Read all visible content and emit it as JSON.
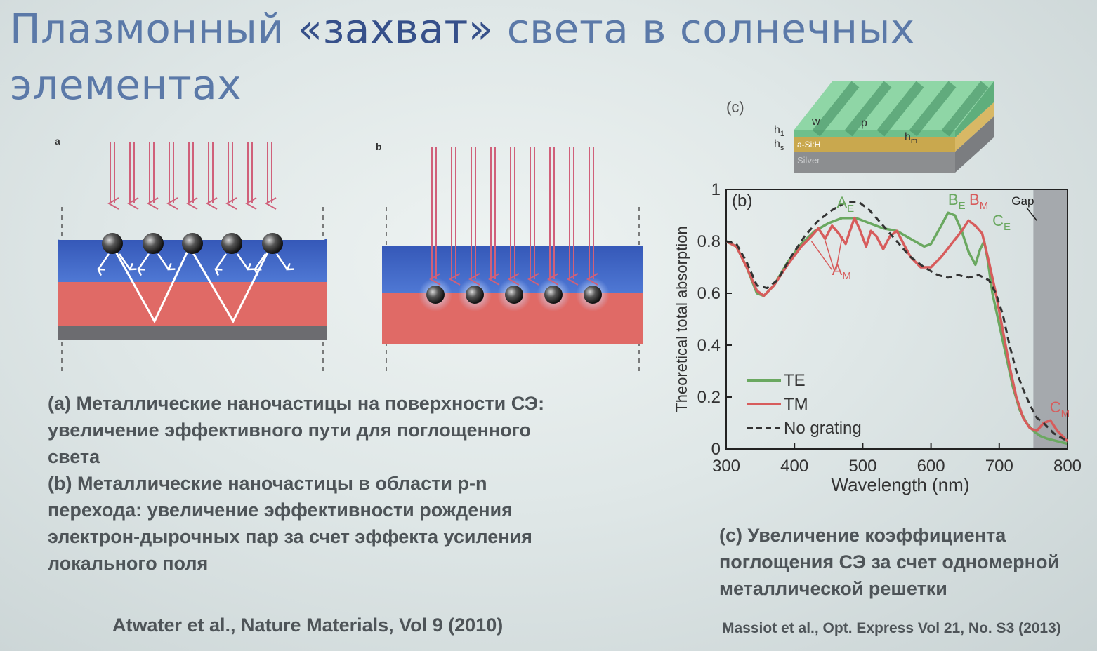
{
  "slide": {
    "title_part1": "Плазмонный ",
    "title_part2": "«захват»",
    "title_part3": " света в солнечных",
    "title_line2": "элементах"
  },
  "figure_left": {
    "panel_a": "a",
    "panel_b": "b",
    "colors": {
      "blue_layer": "#3a62c0",
      "red_layer": "#e06a66",
      "silver": "#6c6c70",
      "arrow": "#d0607a"
    }
  },
  "captions": {
    "left_line1": "(a) Металлические наночастицы на поверхности СЭ:",
    "left_line2": "увеличение эффективного пути для поглощенного",
    "left_line3": "света",
    "left_line4": "(b) Металлические наночастицы в области p-n",
    "left_line5": "перехода: увеличение эффективности рождения",
    "left_line6": "электрон-дырочных пар за счет эффекта усиления",
    "left_line7": "локального поля",
    "right_line1": "(c) Увеличение коэффициента",
    "right_line2": "поглощения СЭ за счет одномерной",
    "right_line3": "металлической решетки"
  },
  "references": {
    "left": "Atwater et al., Nature Materials, Vol 9 (2010)",
    "right": "Massiot et al., Opt. Express Vol 21, No. S3 (2013)"
  },
  "schematic_c": {
    "panel": "(c)",
    "h1": "h",
    "h1_sub": "1",
    "hs": "h",
    "hs_sub": "s",
    "w": "w",
    "p": "p",
    "hm": "h",
    "hm_sub": "m",
    "layer_asi": "a-Si:H",
    "layer_silver": "Silver"
  },
  "chart_data": {
    "type": "line",
    "panel_label": "(b)",
    "xlabel": "Wavelength (nm)",
    "ylabel": "Theoretical total absorption",
    "xlim": [
      300,
      800
    ],
    "ylim": [
      0,
      1
    ],
    "xticks": [
      300,
      400,
      500,
      600,
      700,
      800
    ],
    "yticks": [
      0,
      0.2,
      0.4,
      0.6,
      0.8,
      1
    ],
    "ytick_labels": [
      "0",
      "0.2",
      "0.4",
      "0.6",
      "0.8",
      "1"
    ],
    "grid": false,
    "legend_position": "bottom-left",
    "gap_region": [
      750,
      800
    ],
    "series": [
      {
        "name": "TE",
        "color": "#6aa860",
        "dash": "solid",
        "points": [
          [
            300,
            0.8
          ],
          [
            315,
            0.78
          ],
          [
            330,
            0.7
          ],
          [
            345,
            0.6
          ],
          [
            355,
            0.59
          ],
          [
            370,
            0.63
          ],
          [
            390,
            0.72
          ],
          [
            410,
            0.79
          ],
          [
            430,
            0.84
          ],
          [
            450,
            0.87
          ],
          [
            470,
            0.89
          ],
          [
            490,
            0.89
          ],
          [
            510,
            0.87
          ],
          [
            530,
            0.85
          ],
          [
            550,
            0.84
          ],
          [
            570,
            0.81
          ],
          [
            590,
            0.78
          ],
          [
            600,
            0.79
          ],
          [
            615,
            0.86
          ],
          [
            625,
            0.91
          ],
          [
            635,
            0.9
          ],
          [
            645,
            0.84
          ],
          [
            655,
            0.76
          ],
          [
            665,
            0.71
          ],
          [
            672,
            0.77
          ],
          [
            678,
            0.8
          ],
          [
            683,
            0.73
          ],
          [
            690,
            0.6
          ],
          [
            700,
            0.48
          ],
          [
            710,
            0.36
          ],
          [
            720,
            0.24
          ],
          [
            730,
            0.15
          ],
          [
            740,
            0.1
          ],
          [
            750,
            0.07
          ],
          [
            760,
            0.05
          ],
          [
            770,
            0.04
          ],
          [
            785,
            0.03
          ],
          [
            800,
            0.02
          ]
        ]
      },
      {
        "name": "TM",
        "color": "#d75c5c",
        "dash": "solid",
        "points": [
          [
            300,
            0.8
          ],
          [
            315,
            0.78
          ],
          [
            330,
            0.7
          ],
          [
            345,
            0.61
          ],
          [
            355,
            0.59
          ],
          [
            370,
            0.63
          ],
          [
            390,
            0.71
          ],
          [
            410,
            0.78
          ],
          [
            425,
            0.82
          ],
          [
            435,
            0.85
          ],
          [
            445,
            0.81
          ],
          [
            455,
            0.86
          ],
          [
            465,
            0.83
          ],
          [
            475,
            0.79
          ],
          [
            480,
            0.83
          ],
          [
            488,
            0.89
          ],
          [
            495,
            0.85
          ],
          [
            505,
            0.78
          ],
          [
            512,
            0.84
          ],
          [
            520,
            0.82
          ],
          [
            530,
            0.77
          ],
          [
            540,
            0.82
          ],
          [
            550,
            0.84
          ],
          [
            560,
            0.79
          ],
          [
            570,
            0.74
          ],
          [
            585,
            0.7
          ],
          [
            600,
            0.7
          ],
          [
            615,
            0.74
          ],
          [
            630,
            0.79
          ],
          [
            645,
            0.84
          ],
          [
            655,
            0.88
          ],
          [
            665,
            0.86
          ],
          [
            675,
            0.83
          ],
          [
            685,
            0.72
          ],
          [
            695,
            0.6
          ],
          [
            705,
            0.46
          ],
          [
            715,
            0.32
          ],
          [
            725,
            0.2
          ],
          [
            735,
            0.12
          ],
          [
            745,
            0.08
          ],
          [
            755,
            0.07
          ],
          [
            765,
            0.1
          ],
          [
            775,
            0.11
          ],
          [
            785,
            0.07
          ],
          [
            800,
            0.03
          ]
        ]
      },
      {
        "name": "No grating",
        "color": "#333333",
        "dash": "dashed",
        "points": [
          [
            300,
            0.8
          ],
          [
            315,
            0.79
          ],
          [
            330,
            0.72
          ],
          [
            345,
            0.63
          ],
          [
            360,
            0.62
          ],
          [
            375,
            0.65
          ],
          [
            395,
            0.74
          ],
          [
            415,
            0.82
          ],
          [
            435,
            0.88
          ],
          [
            455,
            0.92
          ],
          [
            475,
            0.95
          ],
          [
            495,
            0.95
          ],
          [
            510,
            0.92
          ],
          [
            530,
            0.86
          ],
          [
            550,
            0.8
          ],
          [
            570,
            0.74
          ],
          [
            590,
            0.7
          ],
          [
            610,
            0.67
          ],
          [
            625,
            0.66
          ],
          [
            640,
            0.67
          ],
          [
            655,
            0.66
          ],
          [
            670,
            0.67
          ],
          [
            685,
            0.65
          ],
          [
            695,
            0.6
          ],
          [
            705,
            0.52
          ],
          [
            715,
            0.4
          ],
          [
            725,
            0.3
          ],
          [
            735,
            0.23
          ],
          [
            745,
            0.17
          ],
          [
            755,
            0.12
          ],
          [
            765,
            0.1
          ],
          [
            780,
            0.06
          ],
          [
            800,
            0.03
          ]
        ]
      }
    ],
    "annotations": [
      {
        "base": "A",
        "sub": "E",
        "x": 462,
        "y": 0.93,
        "color": "#6aa860"
      },
      {
        "base": "A",
        "sub": "M",
        "x": 455,
        "y": 0.67,
        "color": "#d75c5c"
      },
      {
        "base": "B",
        "sub": "E",
        "x": 625,
        "y": 0.94,
        "color": "#6aa860"
      },
      {
        "base": "B",
        "sub": "M",
        "x": 656,
        "y": 0.94,
        "color": "#d75c5c"
      },
      {
        "base": "C",
        "sub": "E",
        "x": 690,
        "y": 0.86,
        "color": "#6aa860"
      },
      {
        "base": "C",
        "sub": "M",
        "x": 774,
        "y": 0.14,
        "color": "#d75c5c"
      },
      {
        "base": "Gap",
        "sub": "",
        "x": 718,
        "y": 0.94,
        "color": "#222222"
      }
    ]
  }
}
